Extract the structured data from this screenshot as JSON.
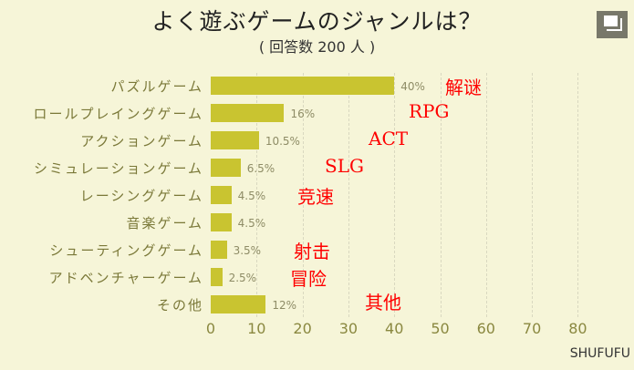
{
  "header": {
    "title": "よく遊ぶゲームのジャンルは？",
    "subtitle": "( 回答数 200 人 )"
  },
  "toolbar": {
    "copy_icon": "copy-icon"
  },
  "brand": "SHUFUFU",
  "colors": {
    "bar": "#c9c430",
    "background": "#f6f5d8",
    "annotation": "#ff0000",
    "label": "#7a7838"
  },
  "chart_data": {
    "type": "bar",
    "orientation": "horizontal",
    "title": "よく遊ぶゲームのジャンルは？",
    "subtitle": "( 回答数 200 人 )",
    "categories": [
      "パズルゲーム",
      "ロールプレイングゲーム",
      "アクションゲーム",
      "シミュレーションゲーム",
      "レーシングゲーム",
      "音楽ゲーム",
      "シューティングゲーム",
      "アドベンチャーゲーム",
      "その他"
    ],
    "values": [
      40,
      16,
      10.5,
      6.5,
      4.5,
      4.5,
      3.5,
      2.5,
      12
    ],
    "value_labels": [
      "40%",
      "16%",
      "10.5%",
      "6.5%",
      "4.5%",
      "4.5%",
      "3.5%",
      "2.5%",
      "12%"
    ],
    "annotations": [
      "解谜",
      "RPG",
      "ACT",
      "SLG",
      "竞速",
      "",
      "射击",
      "冒险",
      "其他"
    ],
    "xlabel": "",
    "ylabel": "",
    "xlim": [
      0,
      80
    ],
    "xticks": [
      "0",
      "10",
      "20",
      "30",
      "40",
      "50",
      "60",
      "70",
      "80"
    ],
    "grid": true,
    "legend": null
  }
}
